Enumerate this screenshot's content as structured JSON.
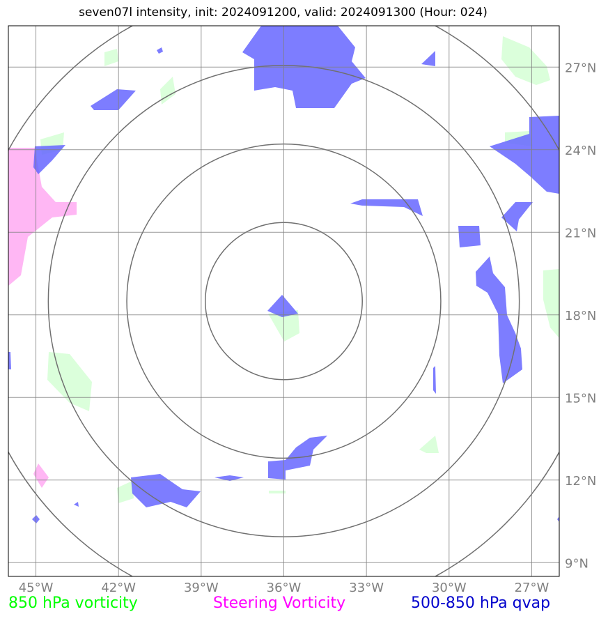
{
  "title": "seven07l intensity, init: 2024091200, valid: 2024091300 (Hour: 024)",
  "map": {
    "lon_range": [
      -46,
      -26
    ],
    "lat_range": [
      8.5,
      28.5
    ],
    "center": {
      "lon": -36,
      "lat": 18.5
    },
    "range_rings_deg": [
      2.85,
      5.7,
      8.55,
      11.4
    ],
    "grid_lons": [
      -45,
      -42,
      -39,
      -36,
      -33,
      -30,
      -27
    ],
    "grid_lats": [
      9,
      12,
      15,
      18,
      21,
      24,
      27
    ],
    "lon_labels": [
      "45°W",
      "42°W",
      "39°W",
      "36°W",
      "33°W",
      "30°W",
      "27°W"
    ],
    "lat_labels": [
      "9°N",
      "12°N",
      "15°N",
      "18°N",
      "21°N",
      "24°N",
      "27°N"
    ],
    "colors": {
      "grid": "#808080",
      "ring": "#707070",
      "vorticity_850": "#ccffcc",
      "steering_vorticity": "#ffaaf2",
      "qvap": "#6666ff"
    }
  },
  "legend": {
    "vort850": {
      "label": "850 hPa vorticity",
      "color": "#00ff00"
    },
    "steering": {
      "label": "Steering Vorticity",
      "color": "#ff00ff"
    },
    "qvap": {
      "label": "500-850 hPa qvap",
      "color": "#0000cc"
    }
  }
}
